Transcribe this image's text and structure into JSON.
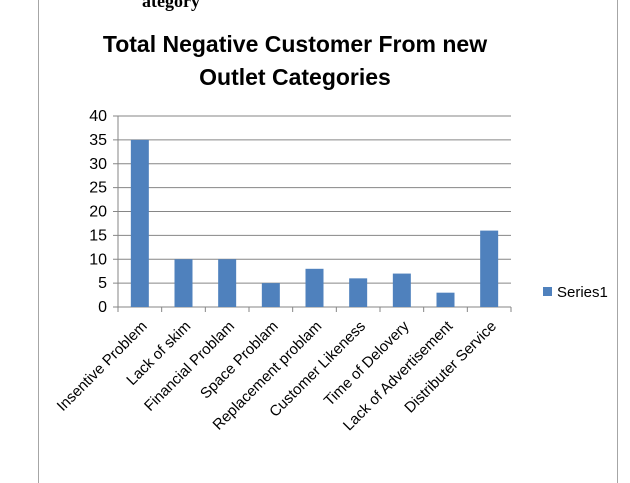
{
  "header": {
    "text": "ategory"
  },
  "chart_data": {
    "type": "bar",
    "title": "Total Negative Customer From new Outlet Categories",
    "categories": [
      "Insentive Problem",
      "Lack of skim",
      "Financial Problam",
      "Space Problam",
      "Replacement problam",
      "Customer Likeness",
      "Time of Delovery",
      "Lack of Advertisement",
      "Distributer Service"
    ],
    "series": [
      {
        "name": "Series1",
        "values": [
          35,
          10,
          10,
          5,
          8,
          6,
          7,
          3,
          16
        ]
      }
    ],
    "yticks": [
      "0",
      "5",
      "10",
      "15",
      "20",
      "25",
      "30",
      "35",
      "40"
    ],
    "ylim": [
      0,
      40
    ],
    "grid": true,
    "legend": "right",
    "colors": {
      "bar": "#4f81bd",
      "grid": "#868686",
      "axis": "#868686"
    }
  }
}
